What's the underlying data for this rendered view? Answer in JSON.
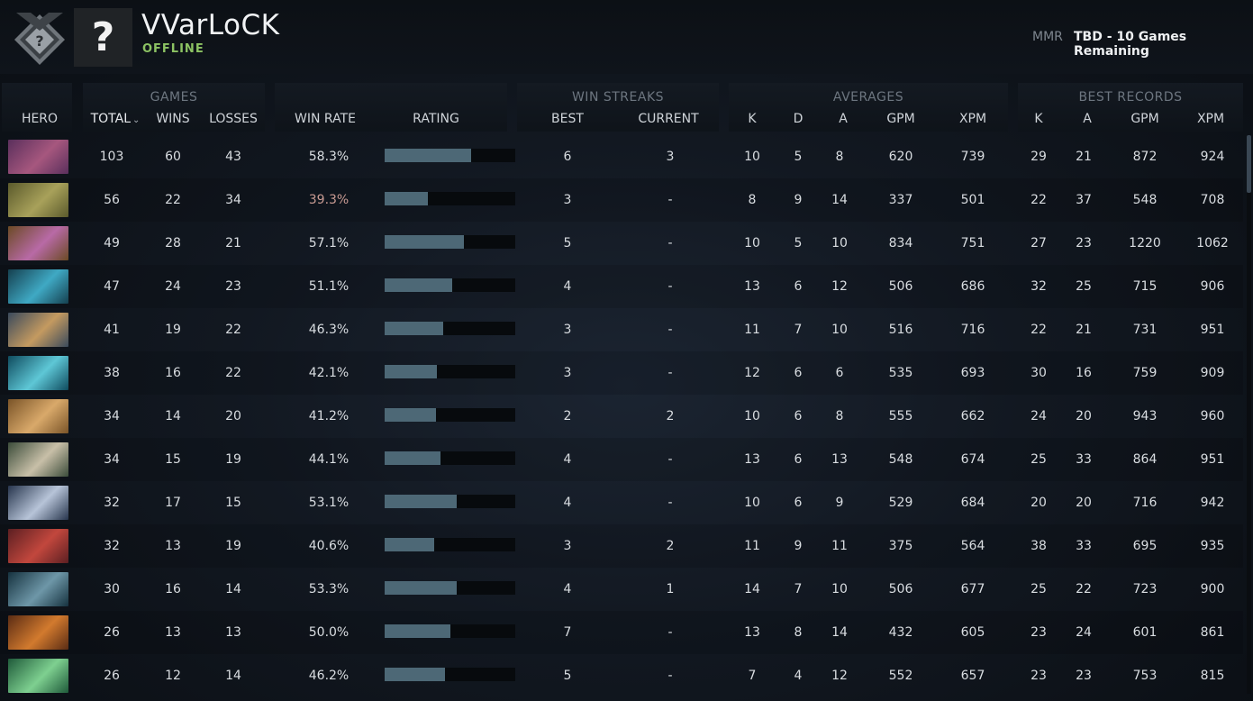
{
  "player": {
    "name": "VVarLoCK",
    "status": "OFFLINE",
    "avatar_glyph": "?",
    "rank_icon": "uncalibrated-rank-badge-icon"
  },
  "mmr": {
    "label": "MMR",
    "value": "TBD - 10 Games Remaining"
  },
  "groups": {
    "games": "GAMES",
    "win_streaks": "WIN STREAKS",
    "averages": "AVERAGES",
    "best_records": "BEST RECORDS"
  },
  "columns": {
    "hero": "HERO",
    "total": "TOTAL",
    "wins": "WINS",
    "losses": "LOSSES",
    "win_rate": "WIN RATE",
    "rating": "RATING",
    "best": "BEST",
    "current": "CURRENT",
    "avg_k": "K",
    "avg_d": "D",
    "avg_a": "A",
    "avg_gpm": "GPM",
    "avg_xpm": "XPM",
    "best_k": "K",
    "best_a": "A",
    "best_gpm": "GPM",
    "best_xpm": "XPM"
  },
  "colors": {
    "status_online": "#8cc263",
    "rating_bar": "#4d6876",
    "low_winrate": "#c99b93"
  },
  "rows": [
    {
      "hero_icon": "anti-mage-portrait",
      "c1": "#5a2f5c",
      "c2": "#a6577e",
      "total": "103",
      "wins": "60",
      "losses": "43",
      "win_rate": "58.3%",
      "rating": 0.66,
      "best": "6",
      "current": "3",
      "k": "10",
      "d": "5",
      "a": "8",
      "gpm": "620",
      "xpm": "739",
      "bk": "29",
      "ba": "21",
      "bgpm": "872",
      "bxpm": "924"
    },
    {
      "hero_icon": "earthshaker-portrait",
      "c1": "#5b5a2c",
      "c2": "#a8a15a",
      "total": "56",
      "wins": "22",
      "losses": "34",
      "win_rate": "39.3%",
      "rating": 0.33,
      "best": "3",
      "current": "-",
      "k": "8",
      "d": "9",
      "a": "14",
      "gpm": "337",
      "xpm": "501",
      "bk": "22",
      "ba": "37",
      "bgpm": "548",
      "bxpm": "708"
    },
    {
      "hero_icon": "alchemist-portrait",
      "c1": "#6b4a24",
      "c2": "#b86aa6",
      "total": "49",
      "wins": "28",
      "losses": "21",
      "win_rate": "57.1%",
      "rating": 0.61,
      "best": "5",
      "current": "-",
      "k": "10",
      "d": "5",
      "a": "10",
      "gpm": "834",
      "xpm": "751",
      "bk": "27",
      "ba": "23",
      "bgpm": "1220",
      "bxpm": "1062"
    },
    {
      "hero_icon": "razor-portrait",
      "c1": "#15404f",
      "c2": "#3fa9c4",
      "total": "47",
      "wins": "24",
      "losses": "23",
      "win_rate": "51.1%",
      "rating": 0.52,
      "best": "4",
      "current": "-",
      "k": "13",
      "d": "6",
      "a": "12",
      "gpm": "506",
      "xpm": "686",
      "bk": "32",
      "ba": "25",
      "bgpm": "715",
      "bxpm": "906"
    },
    {
      "hero_icon": "slark-portrait",
      "c1": "#3a4a5c",
      "c2": "#c49a60",
      "total": "41",
      "wins": "19",
      "losses": "22",
      "win_rate": "46.3%",
      "rating": 0.45,
      "best": "3",
      "current": "-",
      "k": "11",
      "d": "7",
      "a": "10",
      "gpm": "516",
      "xpm": "716",
      "bk": "22",
      "ba": "21",
      "bgpm": "731",
      "bxpm": "951"
    },
    {
      "hero_icon": "morphling-portrait",
      "c1": "#0f4b5e",
      "c2": "#5ec7d6",
      "total": "38",
      "wins": "16",
      "losses": "22",
      "win_rate": "42.1%",
      "rating": 0.4,
      "best": "3",
      "current": "-",
      "k": "12",
      "d": "6",
      "a": "6",
      "gpm": "535",
      "xpm": "693",
      "bk": "30",
      "ba": "16",
      "bgpm": "759",
      "bxpm": "909"
    },
    {
      "hero_icon": "sand-king-portrait",
      "c1": "#7a5428",
      "c2": "#d9a96a",
      "total": "34",
      "wins": "14",
      "losses": "20",
      "win_rate": "41.2%",
      "rating": 0.39,
      "best": "2",
      "current": "2",
      "k": "10",
      "d": "6",
      "a": "8",
      "gpm": "555",
      "xpm": "662",
      "bk": "24",
      "ba": "20",
      "bgpm": "943",
      "bxpm": "960"
    },
    {
      "hero_icon": "sniper-portrait",
      "c1": "#3b4c3a",
      "c2": "#c8bfa8",
      "total": "34",
      "wins": "15",
      "losses": "19",
      "win_rate": "44.1%",
      "rating": 0.43,
      "best": "4",
      "current": "-",
      "k": "13",
      "d": "6",
      "a": "13",
      "gpm": "548",
      "xpm": "674",
      "bk": "25",
      "ba": "33",
      "bgpm": "864",
      "bxpm": "951"
    },
    {
      "hero_icon": "drow-ranger-portrait",
      "c1": "#27354d",
      "c2": "#b7c4d8",
      "total": "32",
      "wins": "17",
      "losses": "15",
      "win_rate": "53.1%",
      "rating": 0.55,
      "best": "4",
      "current": "-",
      "k": "10",
      "d": "6",
      "a": "9",
      "gpm": "529",
      "xpm": "684",
      "bk": "20",
      "ba": "20",
      "bgpm": "716",
      "bxpm": "942"
    },
    {
      "hero_icon": "shadow-demon-portrait",
      "c1": "#5c1f22",
      "c2": "#c2473d",
      "total": "32",
      "wins": "13",
      "losses": "19",
      "win_rate": "40.6%",
      "rating": 0.38,
      "best": "3",
      "current": "2",
      "k": "11",
      "d": "9",
      "a": "11",
      "gpm": "375",
      "xpm": "564",
      "bk": "38",
      "ba": "33",
      "bgpm": "695",
      "bxpm": "935"
    },
    {
      "hero_icon": "abaddon-portrait",
      "c1": "#16323f",
      "c2": "#6e97a8",
      "total": "30",
      "wins": "16",
      "losses": "14",
      "win_rate": "53.3%",
      "rating": 0.55,
      "best": "4",
      "current": "1",
      "k": "14",
      "d": "7",
      "a": "10",
      "gpm": "506",
      "xpm": "677",
      "bk": "25",
      "ba": "22",
      "bgpm": "723",
      "bxpm": "900"
    },
    {
      "hero_icon": "doom-portrait",
      "c1": "#5a2c14",
      "c2": "#d27a2e",
      "total": "26",
      "wins": "13",
      "losses": "13",
      "win_rate": "50.0%",
      "rating": 0.5,
      "best": "7",
      "current": "-",
      "k": "13",
      "d": "8",
      "a": "14",
      "gpm": "432",
      "xpm": "605",
      "bk": "23",
      "ba": "24",
      "bgpm": "601",
      "bxpm": "861"
    },
    {
      "hero_icon": "elder-titan-portrait",
      "c1": "#1f5a3a",
      "c2": "#7ed090",
      "total": "26",
      "wins": "12",
      "losses": "14",
      "win_rate": "46.2%",
      "rating": 0.46,
      "best": "5",
      "current": "-",
      "k": "7",
      "d": "4",
      "a": "12",
      "gpm": "552",
      "xpm": "657",
      "bk": "23",
      "ba": "23",
      "bgpm": "753",
      "bxpm": "815"
    }
  ]
}
